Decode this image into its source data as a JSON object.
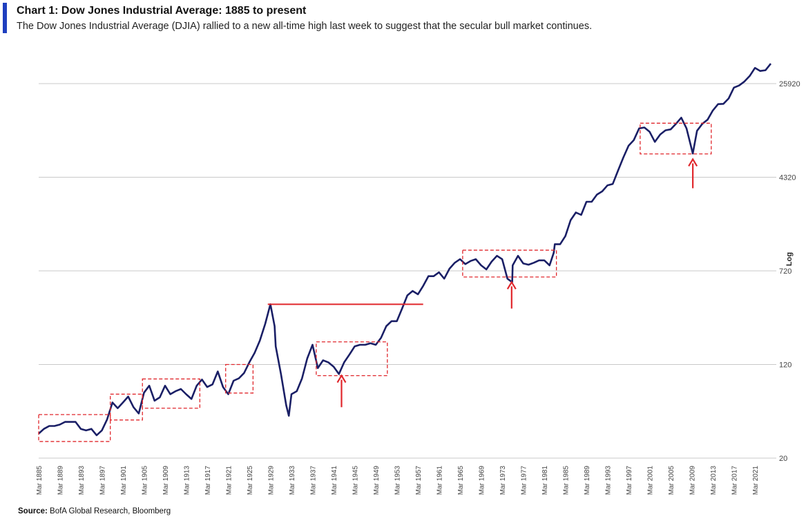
{
  "header": {
    "title": "Chart 1: Dow Jones Industrial Average: 1885 to present",
    "subtitle": "The Dow Jones Industrial Average (DJIA) rallied to a new all-time high last week to suggest that the secular bull market continues."
  },
  "footer": {
    "source_label": "Source:",
    "source_text": "BofA Global Research, Bloomberg"
  },
  "chart_data": {
    "type": "line",
    "title": "Chart 1: Dow Jones Industrial Average: 1885 to present",
    "ylabel": "Log",
    "yscale": "log",
    "ylim": [
      20,
      40000
    ],
    "yticks": [
      20,
      120,
      720,
      4320,
      25920
    ],
    "xlim": [
      1885,
      2024
    ],
    "xticks": [
      "Mar 1885",
      "Mar 1889",
      "Mar 1893",
      "Mar 1897",
      "Mar 1901",
      "Mar 1905",
      "Mar 1909",
      "Mar 1913",
      "Mar 1917",
      "Mar 1921",
      "Mar 1925",
      "Mar 1929",
      "Mar 1933",
      "Mar 1937",
      "Mar 1941",
      "Mar 1945",
      "Mar 1949",
      "Mar 1953",
      "Mar 1957",
      "Mar 1961",
      "Mar 1965",
      "Mar 1969",
      "Mar 1973",
      "Mar 1977",
      "Mar 1981",
      "Mar 1985",
      "Mar 1989",
      "Mar 1993",
      "Mar 1997",
      "Mar 2001",
      "Mar 2005",
      "Mar 2009",
      "Mar 2013",
      "Mar 2017",
      "Mar 2021"
    ],
    "grid": true,
    "colors": {
      "line": "#1a1f66",
      "annotation": "#e0262b",
      "grid": "#c8c8c8",
      "accent": "#1f3fbf"
    },
    "series": [
      {
        "x": [
          1885,
          1886,
          1887,
          1888,
          1889,
          1890,
          1891,
          1892,
          1893,
          1894,
          1895,
          1896,
          1897,
          1898,
          1899,
          1900,
          1901,
          1902,
          1903,
          1904,
          1905,
          1906,
          1907,
          1908,
          1909,
          1910,
          1911,
          1912,
          1913,
          1914,
          1915,
          1916,
          1917,
          1918,
          1919,
          1920,
          1921,
          1922,
          1923,
          1924,
          1925,
          1926,
          1927,
          1928,
          1929,
          1929.8,
          1930,
          1931,
          1932,
          1932.5,
          1933,
          1934,
          1935,
          1936,
          1937,
          1938,
          1939,
          1940,
          1941,
          1942,
          1943,
          1944,
          1945,
          1946,
          1947,
          1948,
          1949,
          1950,
          1951,
          1952,
          1953,
          1954,
          1955,
          1956,
          1957,
          1958,
          1959,
          1960,
          1961,
          1962,
          1963,
          1964,
          1965,
          1966,
          1967,
          1968,
          1969,
          1970,
          1971,
          1972,
          1973,
          1974,
          1974.9,
          1975,
          1976,
          1977,
          1978,
          1979,
          1980,
          1981,
          1982,
          1982.8,
          1983,
          1984,
          1985,
          1986,
          1987,
          1988,
          1989,
          1990,
          1991,
          1992,
          1993,
          1994,
          1995,
          1996,
          1997,
          1998,
          1999,
          2000,
          2001,
          2002,
          2003,
          2004,
          2005,
          2006,
          2007,
          2008,
          2009.2,
          2010,
          2011,
          2012,
          2013,
          2014,
          2015,
          2016,
          2017,
          2018,
          2019,
          2020,
          2021,
          2022,
          2023,
          2024
        ],
        "y": [
          32,
          35,
          37,
          37,
          38,
          40,
          40,
          40,
          35,
          34,
          35,
          31,
          34,
          42,
          58,
          52,
          58,
          65,
          53,
          47,
          70,
          80,
          60,
          64,
          80,
          68,
          72,
          75,
          68,
          62,
          80,
          90,
          78,
          82,
          105,
          78,
          68,
          88,
          92,
          102,
          125,
          150,
          190,
          260,
          380,
          250,
          170,
          100,
          55,
          45,
          68,
          72,
          92,
          135,
          175,
          112,
          130,
          125,
          115,
          100,
          125,
          145,
          170,
          175,
          175,
          180,
          175,
          200,
          250,
          275,
          275,
          350,
          450,
          490,
          460,
          540,
          650,
          650,
          700,
          620,
          750,
          840,
          900,
          820,
          870,
          900,
          800,
          740,
          860,
          960,
          900,
          620,
          580,
          800,
          960,
          830,
          810,
          840,
          880,
          880,
          800,
          1020,
          1200,
          1200,
          1400,
          1900,
          2200,
          2100,
          2700,
          2700,
          3100,
          3300,
          3700,
          3800,
          4900,
          6300,
          7900,
          8800,
          11000,
          11200,
          10300,
          8500,
          9800,
          10600,
          10800,
          12000,
          13500,
          11000,
          6800,
          10500,
          12000,
          13000,
          15500,
          17500,
          17600,
          19500,
          24000,
          25000,
          27000,
          30000,
          35000,
          33000,
          33500,
          38000
        ]
      }
    ],
    "annotations": [
      {
        "type": "hline",
        "y": 380,
        "x_from": 1928.5,
        "x_to": 1958
      },
      {
        "type": "box",
        "x_from": 1885,
        "x_to": 1898.6,
        "y_from": 27.5,
        "y_to": 46
      },
      {
        "type": "box",
        "x_from": 1898.6,
        "x_to": 1904.7,
        "y_from": 41.5,
        "y_to": 68
      },
      {
        "type": "box",
        "x_from": 1904.7,
        "x_to": 1915.6,
        "y_from": 52,
        "y_to": 91
      },
      {
        "type": "box",
        "x_from": 1920.5,
        "x_to": 1925.7,
        "y_from": 69.5,
        "y_to": 120
      },
      {
        "type": "box",
        "x_from": 1937.7,
        "x_to": 1951.2,
        "y_from": 97,
        "y_to": 185
      },
      {
        "type": "box",
        "x_from": 1965.5,
        "x_to": 1983.3,
        "y_from": 640,
        "y_to": 1070
      },
      {
        "type": "box",
        "x_from": 1999.2,
        "x_to": 2012.7,
        "y_from": 6750,
        "y_to": 12150
      },
      {
        "type": "arrow",
        "x": 1942.5,
        "y_tail": 53,
        "y_head": 97
      },
      {
        "type": "arrow",
        "x": 1974.8,
        "y_tail": 350,
        "y_head": 580
      },
      {
        "type": "arrow",
        "x": 2009.2,
        "y_tail": 3500,
        "y_head": 6100
      }
    ]
  }
}
